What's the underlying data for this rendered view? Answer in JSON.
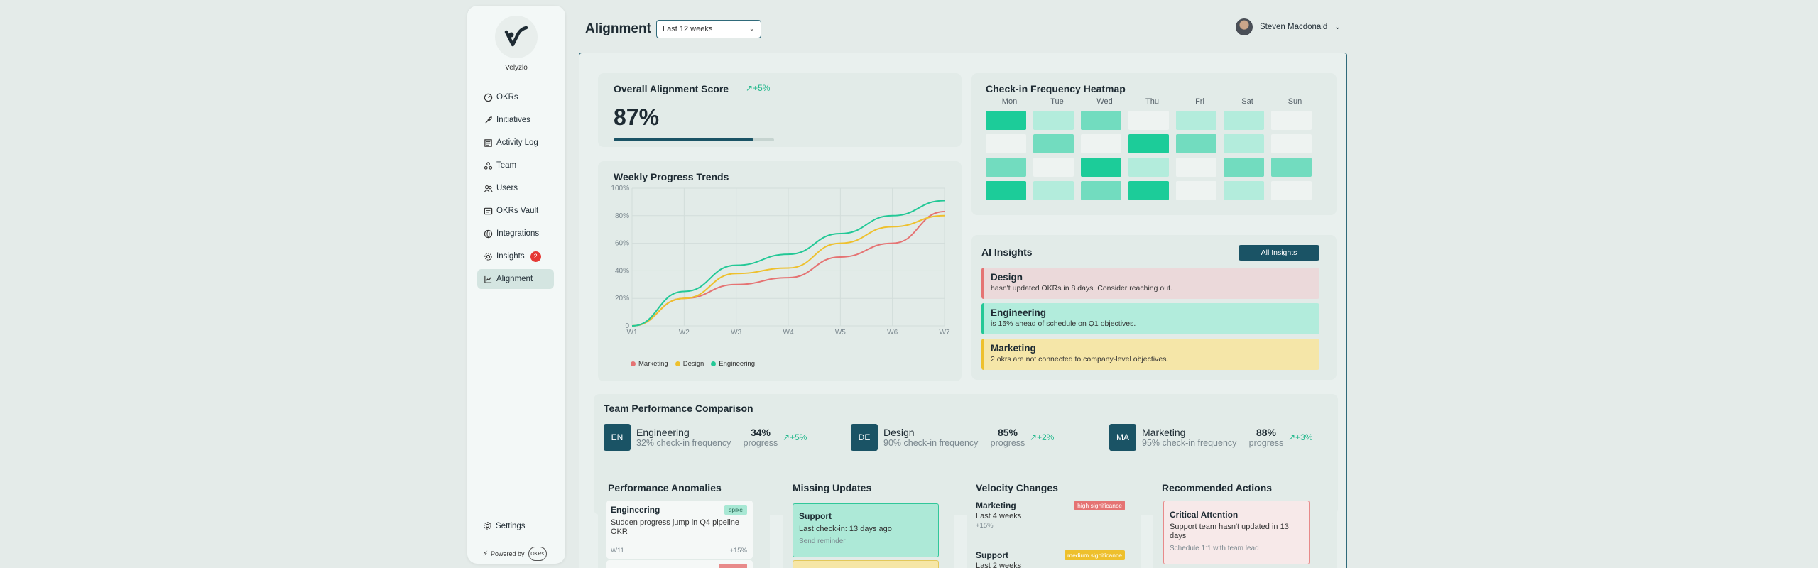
{
  "brand": {
    "name": "Velyzlo"
  },
  "nav": {
    "items": [
      {
        "label": "OKRs",
        "icon": "gauge-icon"
      },
      {
        "label": "Initiatives",
        "icon": "rocket-icon"
      },
      {
        "label": "Activity Log",
        "icon": "log-icon"
      },
      {
        "label": "Team",
        "icon": "team-icon"
      },
      {
        "label": "Users",
        "icon": "users-icon"
      },
      {
        "label": "OKRs Vault",
        "icon": "vault-icon"
      },
      {
        "label": "Integrations",
        "icon": "globe-icon"
      },
      {
        "label": "Insights",
        "icon": "gear-icon",
        "badge": "2"
      },
      {
        "label": "Alignment",
        "icon": "chart-icon",
        "active": true
      }
    ],
    "settings_label": "Settings",
    "powered_by": "Powered by",
    "powered_logo": "OKRs"
  },
  "header": {
    "title": "Alignment",
    "range_value": "Last 12 weeks",
    "user_name": "Steven Macdonald"
  },
  "score": {
    "title": "Overall Alignment Score",
    "trend": "+5%",
    "value": "87%",
    "fill_fraction": 0.87
  },
  "trends": {
    "title": "Weekly Progress Trends"
  },
  "chart_data": {
    "type": "line",
    "title": "Weekly Progress Trends",
    "x": [
      "W1",
      "W2",
      "W3",
      "W4",
      "W5",
      "W6",
      "W7"
    ],
    "yticks": [
      "0",
      "20%",
      "40%",
      "60%",
      "80%",
      "100%"
    ],
    "ylim": [
      0,
      100
    ],
    "grid": true,
    "legend_position": "bottom-left",
    "series": [
      {
        "name": "Marketing",
        "color": "#e57373",
        "values": [
          0,
          20,
          30,
          35,
          50,
          60,
          83
        ]
      },
      {
        "name": "Design",
        "color": "#eec02d",
        "values": [
          0,
          20,
          38,
          42,
          60,
          72,
          80
        ]
      },
      {
        "name": "Engineering",
        "color": "#23c896",
        "values": [
          0,
          25,
          44,
          52,
          67,
          80,
          91
        ]
      }
    ]
  },
  "heatmap": {
    "title": "Check-in Frequency Heatmap",
    "days": [
      "Mon",
      "Tue",
      "Wed",
      "Thu",
      "Fri",
      "Sat",
      "Sun"
    ],
    "levels": [
      [
        4,
        1,
        3,
        0,
        1,
        1,
        0
      ],
      [
        0,
        3,
        0,
        4,
        3,
        1,
        0
      ],
      [
        3,
        0,
        4,
        1,
        0,
        3,
        3
      ],
      [
        4,
        1,
        3,
        4,
        0,
        1,
        0
      ]
    ],
    "palette": [
      "#eef3f1",
      "#b3ecdc",
      "#ace6d4",
      "#72dcbf",
      "#1ccc99"
    ]
  },
  "ai": {
    "title": "AI Insights",
    "button_label": "All Insights",
    "items": [
      {
        "title": "Design",
        "desc": "hasn't updated OKRs in 8 days. Consider reaching out.",
        "bg": "#ebd9da",
        "border": "#e57373"
      },
      {
        "title": "Engineering",
        "desc": "is 15% ahead of schedule on Q1 objectives.",
        "bg": "#b2ecdc",
        "border": "#23c896"
      },
      {
        "title": "Marketing",
        "desc": "2 okrs are not connected to company-level objectives.",
        "bg": "#f5e6a8",
        "border": "#eec02d"
      }
    ]
  },
  "teams": {
    "title": "Team Performance Comparison",
    "items": [
      {
        "initials": "EN",
        "name": "Engineering",
        "freq": "32% check-in frequency",
        "pct": "34%",
        "prog": "progress",
        "change": "+5%"
      },
      {
        "initials": "DE",
        "name": "Design",
        "freq": "90% check-in frequency",
        "pct": "85%",
        "prog": "progress",
        "change": "+2%"
      },
      {
        "initials": "MA",
        "name": "Marketing",
        "freq": "95% check-in frequency",
        "pct": "88%",
        "prog": "progress",
        "change": "+3%"
      }
    ]
  },
  "anomalies": {
    "title": "Performance Anomalies",
    "item": {
      "title": "Engineering",
      "tag": "spike",
      "desc": "Sudden progress jump in Q4 pipeline OKR",
      "week": "W11",
      "change": "+15%"
    }
  },
  "missing": {
    "title": "Missing Updates",
    "item": {
      "title": "Support",
      "desc": "Last check-in: 13 days ago",
      "action": "Send reminder"
    }
  },
  "velocity": {
    "title": "Velocity Changes",
    "items": [
      {
        "title": "Marketing",
        "sig": "high significance",
        "sig_color": "#e57373",
        "desc": "Last 4 weeks",
        "change": "+15%"
      },
      {
        "title": "Support",
        "sig": "medium significance",
        "sig_color": "#eec02d",
        "desc": "Last 2 weeks"
      }
    ]
  },
  "recommended": {
    "title": "Recommended Actions",
    "item": {
      "title": "Critical Attention",
      "desc": "Support team hasn't updated in 13 days",
      "sub": "Schedule 1:1 with team lead"
    }
  }
}
